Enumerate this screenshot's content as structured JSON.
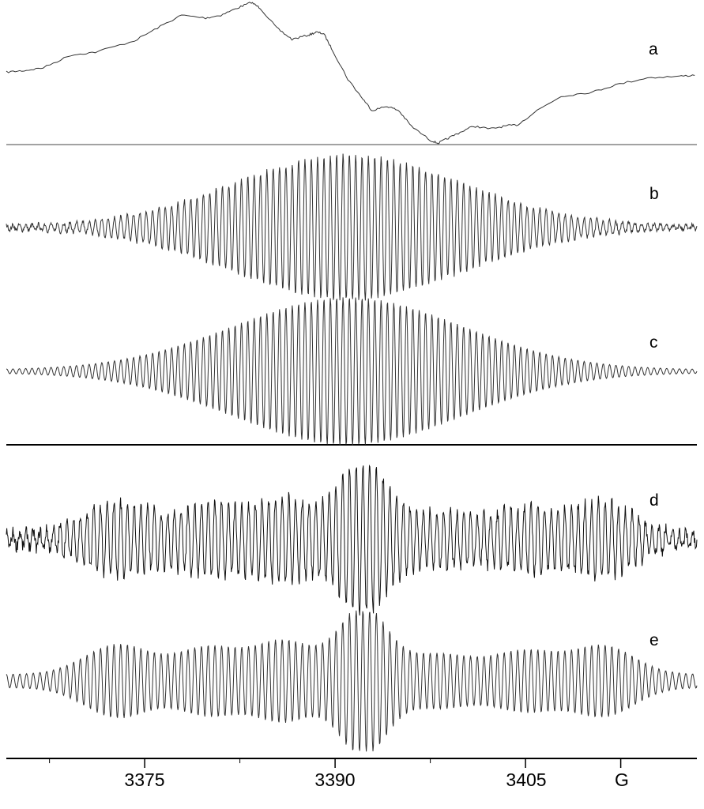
{
  "chart_data": {
    "type": "line",
    "xlabel": "",
    "x_unit_label": "G",
    "xlim": [
      3364.1,
      3418.5
    ],
    "x_ticks_major": [
      3375,
      3390,
      3405
    ],
    "x_tick_labels": [
      "3375",
      "3390",
      "3405"
    ],
    "x_ticks_minor": [
      3367.5,
      3382.5,
      3397.5,
      3412.5
    ],
    "grid": false,
    "legend": "none",
    "panels": [
      {
        "label": "a",
        "description_type": "points",
        "x": [
          3364.1,
          3365.5,
          3367.0,
          3369.2,
          3371.1,
          3374.2,
          3376.0,
          3377.9,
          3379.8,
          3381.0,
          3382.3,
          3383.4,
          3384.1,
          3385.4,
          3386.6,
          3387.9,
          3388.5,
          3389.1,
          3389.7,
          3391.0,
          3392.2,
          3392.9,
          3394.1,
          3395.0,
          3396.0,
          3397.5,
          3398.1,
          3398.8,
          3399.7,
          3400.9,
          3402.2,
          3403.4,
          3404.4,
          3405.9,
          3407.8,
          3410.3,
          3412.1,
          3414.6,
          3417.1,
          3418.5
        ],
        "y": [
          0.51,
          0.52,
          0.54,
          0.63,
          0.65,
          0.73,
          0.82,
          0.91,
          0.89,
          0.91,
          0.96,
          1.0,
          0.96,
          0.82,
          0.74,
          0.77,
          0.79,
          0.78,
          0.68,
          0.46,
          0.32,
          0.24,
          0.27,
          0.24,
          0.13,
          0.03,
          0.01,
          0.04,
          0.08,
          0.13,
          0.11,
          0.13,
          0.14,
          0.24,
          0.34,
          0.37,
          0.42,
          0.47,
          0.48,
          0.49
        ]
      },
      {
        "label": "b",
        "line_spacing_G": 0.5,
        "envelope_center_G": [
          3391.0
        ],
        "envelope_width_G": [
          9.0
        ],
        "envelope_amplitude": [
          1.0
        ],
        "noisy": true
      },
      {
        "label": "c",
        "line_spacing_G": 0.5,
        "envelope_center_G": [
          3391.0
        ],
        "envelope_width_G": [
          9.0
        ],
        "envelope_amplitude": [
          1.0
        ],
        "noisy": false
      },
      {
        "label": "d",
        "line_spacing_G": 0.53,
        "envelope_center_G": [
          3372.9,
          3380.0,
          3386.0,
          3392.2,
          3398.1,
          3405.0,
          3411.2
        ],
        "envelope_width_G": [
          2.6,
          2.4,
          2.4,
          1.9,
          2.6,
          2.6,
          2.4
        ],
        "envelope_amplitude": [
          0.45,
          0.4,
          0.5,
          1.0,
          0.3,
          0.35,
          0.42
        ],
        "noisy": true
      },
      {
        "label": "e",
        "line_spacing_G": 0.53,
        "envelope_center_G": [
          3372.9,
          3380.0,
          3386.0,
          3392.2,
          3398.1,
          3405.0,
          3411.2
        ],
        "envelope_width_G": [
          2.6,
          2.4,
          2.4,
          1.9,
          2.6,
          2.6,
          2.4
        ],
        "envelope_amplitude": [
          0.45,
          0.4,
          0.5,
          1.0,
          0.3,
          0.35,
          0.42
        ],
        "noisy": false
      }
    ],
    "colors": {
      "trace": "#333333",
      "axis": "#000000"
    }
  }
}
